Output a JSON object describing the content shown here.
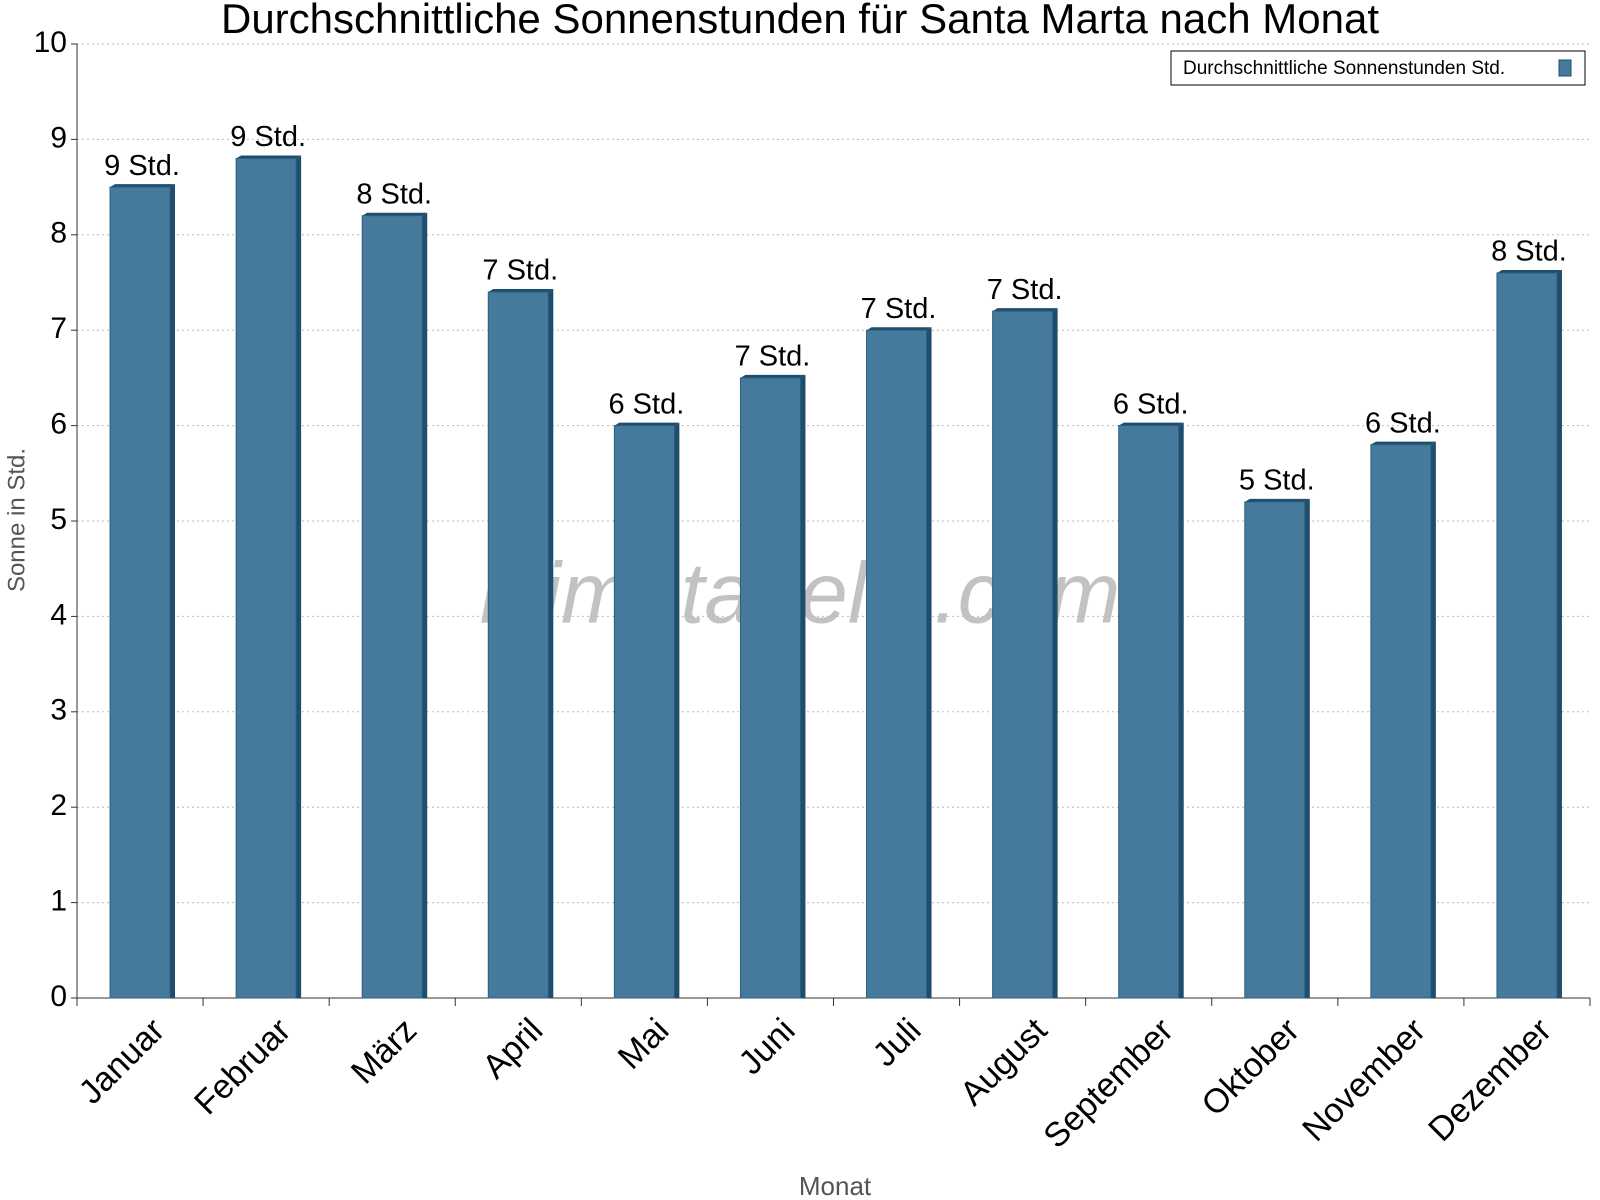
{
  "chart_data": {
    "type": "bar",
    "title": "Durchschnittliche Sonnenstunden für Santa Marta nach Monat",
    "watermark": "klimatabelle.com",
    "x_label": "Monat",
    "y_label": "Sonne in Std.",
    "categories": [
      "Januar",
      "Februar",
      "März",
      "April",
      "Mai",
      "Juni",
      "Juli",
      "August",
      "September",
      "Oktober",
      "November",
      "Dezember"
    ],
    "series": [
      {
        "name": "Durchschnittliche Sonnenstunden Std.",
        "color": "#467a9c",
        "values": [
          8.5,
          8.8,
          8.2,
          7.4,
          6.0,
          6.5,
          7.0,
          7.2,
          6.0,
          5.2,
          5.8,
          7.6
        ],
        "value_labels": [
          "9 Std.",
          "9 Std.",
          "8 Std.",
          "7 Std.",
          "6 Std.",
          "7 Std.",
          "7 Std.",
          "7 Std.",
          "6 Std.",
          "5 Std.",
          "6 Std.",
          "8 Std."
        ]
      }
    ],
    "ylim": [
      0,
      10
    ],
    "yticks": [
      0,
      1,
      2,
      3,
      4,
      5,
      6,
      7,
      8,
      9,
      10
    ],
    "grid": true,
    "legend": "top-right"
  }
}
